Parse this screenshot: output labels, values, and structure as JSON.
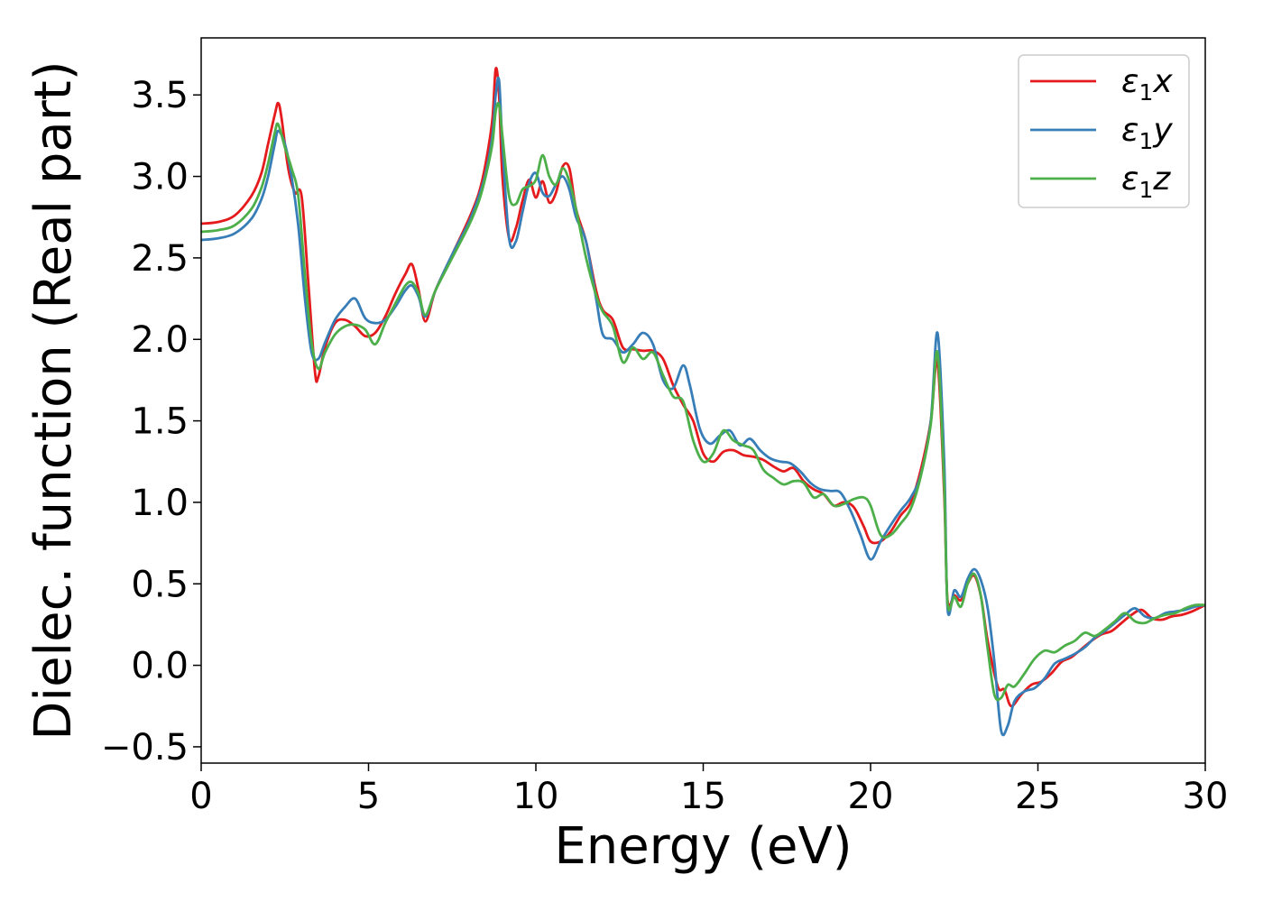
{
  "chart_data": {
    "type": "line",
    "title": "",
    "xlabel": "Energy (eV)",
    "ylabel": "Dielec. function (Real part)",
    "xlim": [
      0,
      30
    ],
    "ylim": [
      -0.6,
      3.85
    ],
    "xticks": [
      0,
      5,
      10,
      15,
      20,
      25,
      30
    ],
    "xtick_labels": [
      "0",
      "5",
      "10",
      "15",
      "20",
      "25",
      "30"
    ],
    "yticks": [
      -0.5,
      0.0,
      0.5,
      1.0,
      1.5,
      2.0,
      2.5,
      3.0,
      3.5
    ],
    "ytick_labels": [
      "−0.5",
      "0.0",
      "0.5",
      "1.0",
      "1.5",
      "2.0",
      "2.5",
      "3.0",
      "3.5"
    ],
    "grid": false,
    "legend_position": "top-right",
    "series": [
      {
        "name": "ε₁x",
        "name_main": "ε",
        "name_sub": "1",
        "name_suffix": "x",
        "color": "#e41a1c",
        "x": [
          0.0,
          0.5,
          1.0,
          1.5,
          1.8,
          2.0,
          2.2,
          2.3,
          2.4,
          2.6,
          2.8,
          3.0,
          3.2,
          3.4,
          3.5,
          3.7,
          4.0,
          4.3,
          4.6,
          4.9,
          5.2,
          5.5,
          5.8,
          6.1,
          6.3,
          6.5,
          6.7,
          7.0,
          7.5,
          8.0,
          8.3,
          8.5,
          8.7,
          8.8,
          8.9,
          9.0,
          9.2,
          9.4,
          9.6,
          9.8,
          10.0,
          10.2,
          10.4,
          10.6,
          10.8,
          11.0,
          11.2,
          11.5,
          11.8,
          12.0,
          12.3,
          12.6,
          12.9,
          13.2,
          13.5,
          13.8,
          14.1,
          14.4,
          14.7,
          15.0,
          15.3,
          15.6,
          15.9,
          16.2,
          16.5,
          16.8,
          17.1,
          17.4,
          17.7,
          18.0,
          18.3,
          18.6,
          18.9,
          19.2,
          19.5,
          19.8,
          20.0,
          20.3,
          20.6,
          20.9,
          21.2,
          21.5,
          21.8,
          22.0,
          22.2,
          22.3,
          22.5,
          22.7,
          22.9,
          23.1,
          23.3,
          23.5,
          23.8,
          24.0,
          24.2,
          24.5,
          24.8,
          25.1,
          25.4,
          25.7,
          26.0,
          26.3,
          26.6,
          26.9,
          27.2,
          27.5,
          27.8,
          28.1,
          28.4,
          28.7,
          29.0,
          29.3,
          29.6,
          30.0
        ],
        "y": [
          2.71,
          2.72,
          2.76,
          2.88,
          3.02,
          3.2,
          3.38,
          3.45,
          3.36,
          3.05,
          2.9,
          2.88,
          2.35,
          1.8,
          1.77,
          1.95,
          2.1,
          2.12,
          2.08,
          2.02,
          2.04,
          2.14,
          2.28,
          2.4,
          2.46,
          2.3,
          2.11,
          2.3,
          2.52,
          2.74,
          2.9,
          3.08,
          3.35,
          3.66,
          3.5,
          3.0,
          2.62,
          2.68,
          2.85,
          2.98,
          2.87,
          2.97,
          2.84,
          2.9,
          3.06,
          3.05,
          2.8,
          2.6,
          2.3,
          2.18,
          2.12,
          1.95,
          1.94,
          1.93,
          1.93,
          1.88,
          1.72,
          1.6,
          1.5,
          1.3,
          1.25,
          1.31,
          1.32,
          1.29,
          1.28,
          1.26,
          1.22,
          1.19,
          1.21,
          1.13,
          1.08,
          1.05,
          0.98,
          1.0,
          0.97,
          0.85,
          0.76,
          0.76,
          0.82,
          0.92,
          1.0,
          1.2,
          1.5,
          1.86,
          1.05,
          0.4,
          0.43,
          0.4,
          0.5,
          0.55,
          0.42,
          0.15,
          -0.13,
          -0.15,
          -0.25,
          -0.18,
          -0.12,
          -0.1,
          -0.05,
          0.02,
          0.05,
          0.1,
          0.15,
          0.19,
          0.21,
          0.26,
          0.31,
          0.34,
          0.29,
          0.28,
          0.3,
          0.31,
          0.33,
          0.37
        ],
        "smooth": true
      },
      {
        "name": "ε₁y",
        "name_main": "ε",
        "name_sub": "1",
        "name_suffix": "y",
        "color": "#377eb8",
        "x": [
          0.0,
          0.5,
          1.0,
          1.5,
          1.8,
          2.0,
          2.2,
          2.3,
          2.5,
          2.7,
          2.9,
          3.1,
          3.3,
          3.5,
          3.7,
          4.0,
          4.3,
          4.6,
          4.9,
          5.2,
          5.5,
          5.8,
          6.1,
          6.3,
          6.5,
          6.7,
          7.0,
          7.5,
          8.0,
          8.3,
          8.5,
          8.7,
          8.8,
          8.9,
          9.0,
          9.2,
          9.4,
          9.6,
          9.8,
          10.0,
          10.2,
          10.4,
          10.6,
          10.8,
          11.0,
          11.2,
          11.5,
          11.8,
          12.0,
          12.3,
          12.6,
          12.9,
          13.2,
          13.5,
          13.8,
          14.1,
          14.4,
          14.6,
          14.9,
          15.2,
          15.5,
          15.8,
          16.1,
          16.4,
          16.7,
          17.0,
          17.3,
          17.6,
          17.9,
          18.2,
          18.5,
          18.8,
          19.1,
          19.4,
          19.7,
          20.0,
          20.3,
          20.6,
          20.9,
          21.2,
          21.5,
          21.8,
          22.0,
          22.2,
          22.3,
          22.5,
          22.7,
          22.9,
          23.1,
          23.3,
          23.5,
          23.7,
          23.9,
          24.1,
          24.3,
          24.6,
          24.9,
          25.2,
          25.5,
          25.8,
          26.1,
          26.4,
          26.7,
          27.0,
          27.3,
          27.6,
          27.9,
          28.2,
          28.5,
          28.8,
          29.1,
          29.4,
          29.7,
          30.0
        ],
        "y": [
          2.61,
          2.62,
          2.65,
          2.74,
          2.86,
          3.0,
          3.2,
          3.28,
          3.2,
          3.0,
          2.7,
          2.25,
          1.92,
          1.88,
          1.98,
          2.12,
          2.2,
          2.25,
          2.13,
          2.1,
          2.12,
          2.2,
          2.3,
          2.33,
          2.26,
          2.14,
          2.3,
          2.52,
          2.72,
          2.88,
          3.02,
          3.25,
          3.5,
          3.59,
          3.2,
          2.62,
          2.6,
          2.78,
          2.96,
          3.02,
          2.9,
          2.88,
          2.95,
          3.0,
          2.92,
          2.75,
          2.6,
          2.25,
          2.03,
          2.0,
          1.92,
          1.97,
          2.04,
          1.97,
          1.75,
          1.7,
          1.84,
          1.72,
          1.45,
          1.36,
          1.41,
          1.44,
          1.35,
          1.39,
          1.32,
          1.27,
          1.25,
          1.24,
          1.19,
          1.12,
          1.08,
          1.07,
          1.06,
          0.95,
          0.8,
          0.65,
          0.76,
          0.86,
          0.95,
          1.03,
          1.17,
          1.5,
          2.04,
          1.25,
          0.35,
          0.46,
          0.42,
          0.53,
          0.59,
          0.52,
          0.35,
          0.02,
          -0.4,
          -0.37,
          -0.22,
          -0.16,
          -0.14,
          -0.08,
          0.01,
          0.04,
          0.07,
          0.11,
          0.17,
          0.21,
          0.26,
          0.31,
          0.35,
          0.3,
          0.29,
          0.32,
          0.33,
          0.34,
          0.36,
          0.37
        ],
        "smooth": true
      },
      {
        "name": "ε₁z",
        "name_main": "ε",
        "name_sub": "1",
        "name_suffix": "z",
        "color": "#4daf4a",
        "x": [
          0.0,
          0.5,
          1.0,
          1.5,
          1.8,
          2.0,
          2.2,
          2.3,
          2.5,
          2.7,
          2.9,
          3.1,
          3.3,
          3.5,
          3.7,
          4.0,
          4.3,
          4.6,
          4.9,
          5.2,
          5.5,
          5.8,
          6.1,
          6.3,
          6.5,
          6.7,
          7.0,
          7.5,
          8.0,
          8.3,
          8.5,
          8.7,
          8.8,
          8.9,
          9.0,
          9.2,
          9.4,
          9.6,
          9.8,
          10.0,
          10.2,
          10.4,
          10.6,
          10.8,
          11.0,
          11.2,
          11.5,
          11.8,
          12.0,
          12.3,
          12.6,
          12.9,
          13.2,
          13.5,
          13.8,
          14.1,
          14.4,
          14.7,
          15.0,
          15.3,
          15.6,
          15.9,
          16.2,
          16.5,
          16.8,
          17.1,
          17.4,
          17.7,
          18.0,
          18.3,
          18.6,
          18.9,
          19.2,
          19.5,
          19.8,
          20.0,
          20.3,
          20.6,
          20.9,
          21.2,
          21.5,
          21.8,
          22.0,
          22.2,
          22.3,
          22.5,
          22.7,
          22.9,
          23.1,
          23.3,
          23.5,
          23.7,
          23.9,
          24.1,
          24.3,
          24.6,
          24.9,
          25.2,
          25.5,
          25.8,
          26.1,
          26.4,
          26.7,
          27.0,
          27.3,
          27.6,
          27.9,
          28.2,
          28.5,
          28.8,
          29.1,
          29.4,
          29.7,
          30.0
        ],
        "y": [
          2.66,
          2.67,
          2.7,
          2.8,
          2.93,
          3.08,
          3.27,
          3.32,
          3.18,
          3.05,
          2.88,
          2.4,
          1.98,
          1.82,
          1.92,
          2.03,
          2.08,
          2.09,
          2.06,
          1.97,
          2.1,
          2.22,
          2.33,
          2.35,
          2.28,
          2.15,
          2.3,
          2.5,
          2.7,
          2.85,
          3.0,
          3.2,
          3.4,
          3.44,
          3.25,
          2.88,
          2.83,
          2.92,
          2.94,
          2.98,
          3.13,
          3.0,
          2.95,
          3.05,
          2.97,
          2.8,
          2.5,
          2.27,
          2.17,
          2.08,
          1.86,
          1.95,
          1.88,
          1.92,
          1.78,
          1.65,
          1.62,
          1.38,
          1.25,
          1.3,
          1.44,
          1.38,
          1.35,
          1.32,
          1.2,
          1.15,
          1.11,
          1.13,
          1.12,
          1.03,
          1.05,
          0.98,
          0.99,
          1.02,
          1.03,
          0.98,
          0.8,
          0.8,
          0.87,
          0.96,
          1.16,
          1.48,
          1.92,
          1.1,
          0.38,
          0.42,
          0.36,
          0.5,
          0.56,
          0.42,
          0.1,
          -0.18,
          -0.2,
          -0.12,
          -0.13,
          -0.05,
          0.04,
          0.09,
          0.08,
          0.12,
          0.15,
          0.2,
          0.18,
          0.22,
          0.27,
          0.32,
          0.27,
          0.26,
          0.29,
          0.31,
          0.32,
          0.35,
          0.37,
          0.37
        ],
        "smooth": true
      }
    ]
  }
}
